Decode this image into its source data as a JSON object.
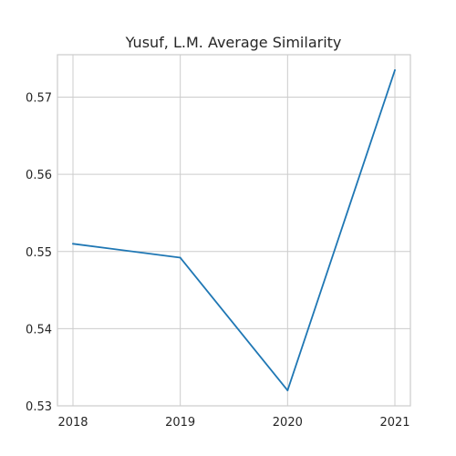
{
  "chart_data": {
    "type": "line",
    "title": "Yusuf, L.M. Average Similarity",
    "xlabel": "",
    "ylabel": "",
    "x": [
      2018,
      2019,
      2020,
      2021
    ],
    "x_tick_labels": [
      "2018",
      "2019",
      "2020",
      "2021"
    ],
    "series": [
      {
        "values": [
          0.551,
          0.5492,
          0.532,
          0.5735
        ],
        "color": "#1f77b4"
      }
    ],
    "ylim": [
      0.53,
      0.5755
    ],
    "y_ticks": [
      0.53,
      0.54,
      0.55,
      0.56,
      0.57
    ],
    "y_tick_labels": [
      "0.53",
      "0.54",
      "0.55",
      "0.56",
      "0.57"
    ],
    "grid": true,
    "legend": false
  }
}
